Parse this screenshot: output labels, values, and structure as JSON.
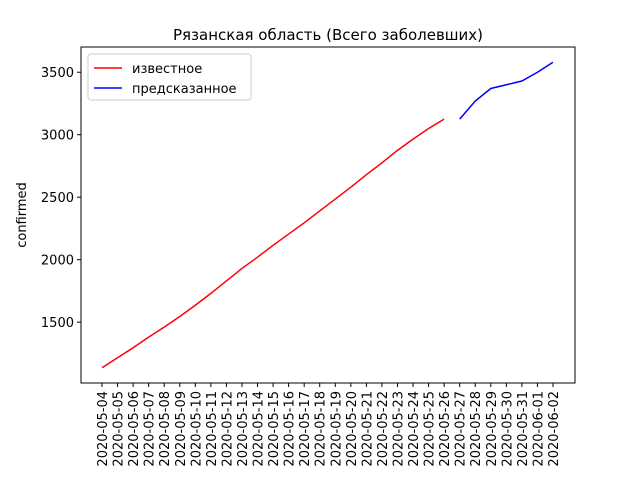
{
  "chart_data": {
    "type": "line",
    "title": "Рязанская область (Всего заболевших)",
    "ylabel": "confirmed",
    "x": [
      "2020-05-04",
      "2020-05-05",
      "2020-05-06",
      "2020-05-07",
      "2020-05-08",
      "2020-05-09",
      "2020-05-10",
      "2020-05-11",
      "2020-05-12",
      "2020-05-13",
      "2020-05-14",
      "2020-05-15",
      "2020-05-16",
      "2020-05-17",
      "2020-05-18",
      "2020-05-19",
      "2020-05-20",
      "2020-05-21",
      "2020-05-22",
      "2020-05-23",
      "2020-05-24",
      "2020-05-25",
      "2020-05-26",
      "2020-05-27",
      "2020-05-28",
      "2020-05-29",
      "2020-05-30",
      "2020-05-31",
      "2020-06-01",
      "2020-06-02"
    ],
    "series": [
      {
        "name": "известное",
        "color": "#ff0000",
        "values": [
          1135,
          1215,
          1295,
          1380,
          1460,
          1545,
          1635,
          1730,
          1830,
          1930,
          2020,
          2115,
          2205,
          2295,
          2390,
          2485,
          2580,
          2680,
          2775,
          2875,
          2965,
          3050,
          3125,
          null,
          null,
          null,
          null,
          null,
          null,
          null
        ]
      },
      {
        "name": "предсказанное",
        "color": "#0000ff",
        "values": [
          null,
          null,
          null,
          null,
          null,
          null,
          null,
          null,
          null,
          null,
          null,
          null,
          null,
          null,
          null,
          null,
          null,
          null,
          null,
          null,
          null,
          null,
          null,
          3125,
          3270,
          3370,
          3400,
          3430,
          3500,
          3580
        ]
      }
    ],
    "ylim": [
      1013,
      3702
    ],
    "yticks": [
      1500,
      2000,
      2500,
      3000,
      3500
    ],
    "legend": "upper left"
  }
}
